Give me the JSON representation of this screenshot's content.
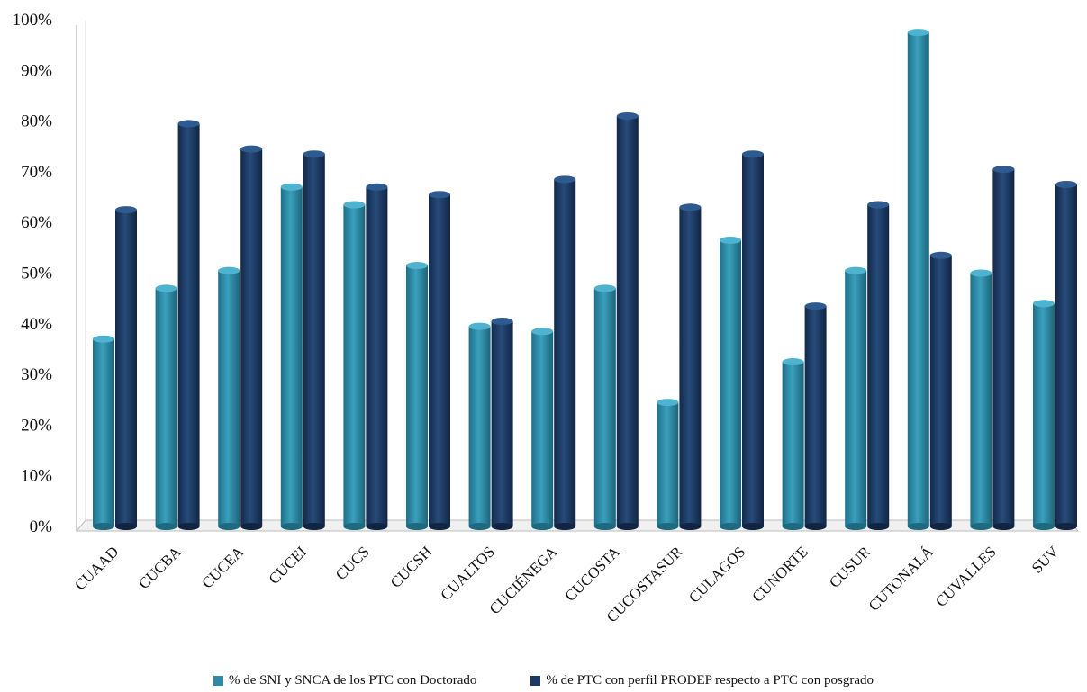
{
  "chart_data": {
    "type": "bar",
    "categories": [
      "CUAAD",
      "CUCBA",
      "CUCEA",
      "CUCEI",
      "CUCS",
      "CUCSH",
      "CUALTOS",
      "CUCIÉNEGA",
      "CUCOSTA",
      "CUCOSTASUR",
      "CULAGOS",
      "CUNORTE",
      "CUSUR",
      "CUTONALÁ",
      "CUVALLES",
      "SUV"
    ],
    "series": [
      {
        "name": "% de SNI y SNCA de los PTC con Doctorado",
        "color": "#2e8aa6",
        "values": [
          37,
          47,
          50.5,
          67,
          63.5,
          51.5,
          39.5,
          38.5,
          47,
          24.5,
          56.5,
          32.5,
          50.5,
          97.5,
          50,
          44
        ]
      },
      {
        "name": "% de PTC con perfil PRODEP respecto a PTC con posgrado",
        "color": "#1c3a63",
        "values": [
          62.5,
          79.5,
          74.5,
          73.5,
          67,
          65.5,
          40.5,
          68.5,
          81,
          63,
          73.5,
          43.5,
          63.5,
          53.5,
          70.5,
          67.5
        ]
      }
    ],
    "y_ticks": [
      "0%",
      "10%",
      "20%",
      "30%",
      "40%",
      "50%",
      "60%",
      "70%",
      "80%",
      "90%",
      "100%"
    ],
    "ylim": [
      0,
      100
    ],
    "grid": false,
    "legend_position": "bottom"
  }
}
